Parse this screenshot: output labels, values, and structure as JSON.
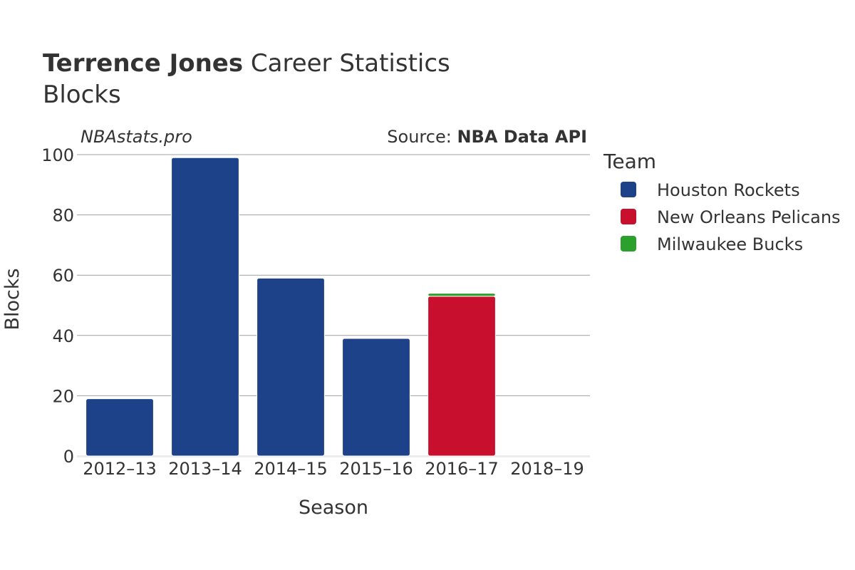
{
  "header": {
    "title_bold": "Terrence Jones",
    "title_rest": " Career Statistics",
    "subtitle": "Blocks"
  },
  "credits": {
    "left": "NBAstats.pro",
    "source_prefix": "Source: ",
    "source_bold": "NBA Data API"
  },
  "legend": {
    "title": "Team"
  },
  "chart_data": {
    "type": "bar",
    "stacked": true,
    "title": "Terrence Jones Career Statistics",
    "subtitle": "Blocks",
    "xlabel": "Season",
    "ylabel": "Blocks",
    "ylim": [
      0,
      100
    ],
    "yticks": [
      0,
      20,
      40,
      60,
      80,
      100
    ],
    "grid": true,
    "legend_position": "right",
    "categories": [
      "2012–13",
      "2013–14",
      "2014–15",
      "2015–16",
      "2016–17",
      "2018–19"
    ],
    "series": [
      {
        "name": "Houston Rockets",
        "color": "#1d428a",
        "values": [
          19,
          99,
          59,
          39,
          0,
          0
        ]
      },
      {
        "name": "New Orleans Pelicans",
        "color": "#c8102e",
        "values": [
          0,
          0,
          0,
          0,
          53,
          0
        ]
      },
      {
        "name": "Milwaukee Bucks",
        "color": "#2ca02c",
        "values": [
          0,
          0,
          0,
          0,
          1,
          0
        ]
      }
    ]
  }
}
